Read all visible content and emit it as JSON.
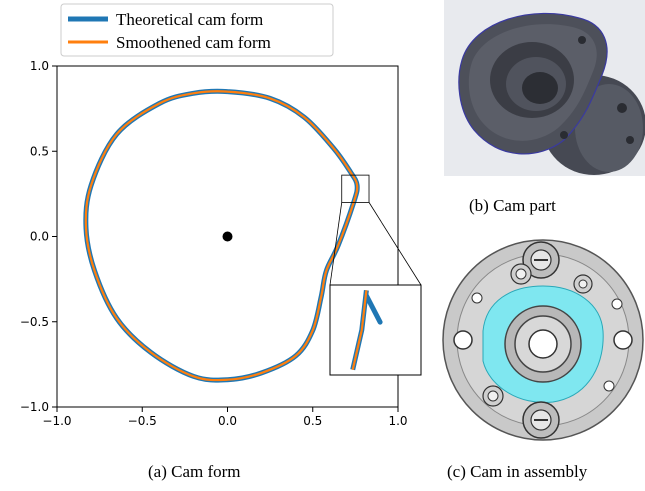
{
  "chart_data": {
    "type": "line",
    "title": "",
    "xlabel": "",
    "ylabel": "",
    "xlim": [
      -1.0,
      1.0
    ],
    "ylim": [
      -1.0,
      1.0
    ],
    "xticks": [
      "−1.0",
      "−0.5",
      "0.0",
      "0.5",
      "1.0"
    ],
    "yticks": [
      "−1.0",
      "−0.5",
      "0.0",
      "0.5",
      "1.0"
    ],
    "grid": false,
    "legend_location": "top",
    "center_point": {
      "x": 0.0,
      "y": 0.0
    },
    "series": [
      {
        "name": "Theoretical cam form",
        "color": "#1f77b4",
        "points": [
          [
            0.0,
            0.85
          ],
          [
            0.25,
            0.81
          ],
          [
            0.45,
            0.7
          ],
          [
            0.62,
            0.52
          ],
          [
            0.72,
            0.38
          ],
          [
            0.76,
            0.3
          ],
          [
            0.74,
            0.2
          ],
          [
            0.65,
            -0.05
          ],
          [
            0.58,
            -0.2
          ],
          [
            0.55,
            -0.35
          ],
          [
            0.5,
            -0.55
          ],
          [
            0.4,
            -0.7
          ],
          [
            0.2,
            -0.8
          ],
          [
            0.0,
            -0.84
          ],
          [
            -0.2,
            -0.82
          ],
          [
            -0.45,
            -0.68
          ],
          [
            -0.65,
            -0.48
          ],
          [
            -0.78,
            -0.2
          ],
          [
            -0.83,
            0.05
          ],
          [
            -0.8,
            0.3
          ],
          [
            -0.65,
            0.6
          ],
          [
            -0.4,
            0.78
          ],
          [
            -0.2,
            0.84
          ],
          [
            0.0,
            0.85
          ]
        ],
        "inset_points": [
          [
            0.88,
            -0.6
          ],
          [
            0.87,
            -0.75
          ],
          [
            0.85,
            -0.9
          ]
        ],
        "inset_tip": [
          [
            0.88,
            -0.62
          ],
          [
            0.91,
            -0.72
          ]
        ]
      },
      {
        "name": "Smoothened cam form",
        "color": "#ff7f0e",
        "points": [
          [
            0.0,
            0.85
          ],
          [
            0.25,
            0.81
          ],
          [
            0.45,
            0.7
          ],
          [
            0.62,
            0.52
          ],
          [
            0.72,
            0.38
          ],
          [
            0.76,
            0.3
          ],
          [
            0.74,
            0.2
          ],
          [
            0.65,
            -0.05
          ],
          [
            0.58,
            -0.2
          ],
          [
            0.55,
            -0.35
          ],
          [
            0.5,
            -0.55
          ],
          [
            0.4,
            -0.7
          ],
          [
            0.2,
            -0.8
          ],
          [
            0.0,
            -0.84
          ],
          [
            -0.2,
            -0.82
          ],
          [
            -0.45,
            -0.68
          ],
          [
            -0.65,
            -0.48
          ],
          [
            -0.78,
            -0.2
          ],
          [
            -0.83,
            0.05
          ],
          [
            -0.8,
            0.3
          ],
          [
            -0.65,
            0.6
          ],
          [
            -0.4,
            0.78
          ],
          [
            -0.2,
            0.84
          ],
          [
            0.0,
            0.85
          ]
        ],
        "inset_points": [
          [
            0.88,
            -0.6
          ],
          [
            0.87,
            -0.75
          ],
          [
            0.85,
            -0.9
          ]
        ]
      }
    ],
    "zoom_region": {
      "x": [
        0.67,
        0.83
      ],
      "y": [
        0.2,
        0.36
      ]
    },
    "inset_location": "lower-right"
  },
  "captions": {
    "a": "(a) Cam form",
    "b": "(b) Cam part",
    "c": "(c) Cam in assembly"
  },
  "images": {
    "cam_part": {
      "body_color": "#4b4e58",
      "edge_color": "#3a3aa0"
    },
    "assembly": {
      "plate_color": "#c9c9c9",
      "highlight_color": "#7fe7f0"
    }
  }
}
